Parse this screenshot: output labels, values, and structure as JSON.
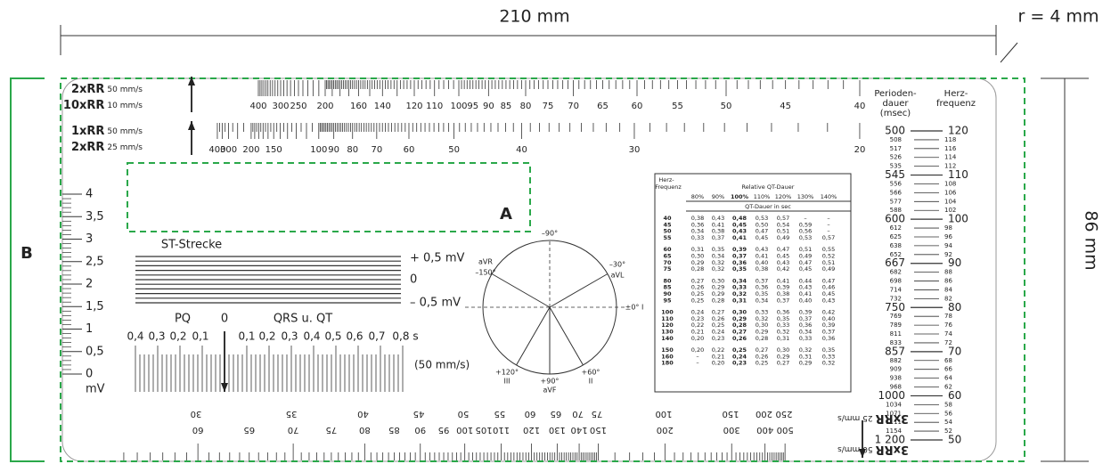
{
  "dimensions": {
    "width": "210 mm",
    "height": "86 mm",
    "radius": "r = 4 mm"
  },
  "callouts": {
    "a": "A",
    "b": "B"
  },
  "rr_scale_top": {
    "label_1": "2xRR",
    "unit_1": "50 mm/s",
    "label_2": "10xRR",
    "unit_2": "10 mm/s",
    "ticks": [
      "400",
      "300",
      "250",
      "200",
      "160",
      "140",
      "120",
      "110",
      "100",
      "95",
      "90",
      "85",
      "80",
      "75",
      "70",
      "65",
      "60",
      "55",
      "50",
      "45",
      "40"
    ]
  },
  "rr_scale_middle": {
    "label_1": "1xRR",
    "unit_1": "50 mm/s",
    "label_2": "2xRR",
    "unit_2": "25 mm/s",
    "ticks": [
      "400",
      "300",
      "200",
      "150",
      "100",
      "90",
      "80",
      "70",
      "60",
      "50",
      "40",
      "30",
      "20"
    ]
  },
  "mv_scale": {
    "ticks": [
      "4",
      "3,5",
      "3",
      "2,5",
      "2",
      "1,5",
      "1",
      "0,5",
      "0"
    ],
    "unit": "mV"
  },
  "st_segment": {
    "title": "ST-Strecke",
    "labels": [
      "+ 0,5 mV",
      "0",
      "– 0,5 mV"
    ]
  },
  "pq_qrs_scale": {
    "pq": "PQ",
    "zero": "0",
    "qrs_qt": "QRS u. QT",
    "ticks": [
      "0,4",
      "0,3",
      "0,2",
      "0,1",
      "0,1",
      "0,2",
      "0,3",
      "0,4",
      "0,5",
      "0,6",
      "0,7",
      "0,8 s"
    ],
    "speed": "(50 mm/s)"
  },
  "axis_circle": {
    "labels": [
      "–90°",
      "aVR",
      "–150°",
      "–30°",
      "aVL",
      "±0° I",
      "+120°",
      "III",
      "+90°",
      "aVF",
      "+60°",
      "II"
    ]
  },
  "qt_table": {
    "heart_rate_header": [
      "Herz-",
      "Frequenz"
    ],
    "relative_header": "Relative QT-Dauer",
    "columns": [
      "80%",
      "90%",
      "100%",
      "110%",
      "120%",
      "130%",
      "140%"
    ],
    "subheader": "QT-Dauer in sec",
    "rows": [
      [
        "40",
        "0,38",
        "0,43",
        "0,48",
        "0,53",
        "0,57",
        "–",
        "–"
      ],
      [
        "45",
        "0,36",
        "0,41",
        "0,45",
        "0,50",
        "0,54",
        "0,59",
        "–"
      ],
      [
        "50",
        "0,34",
        "0,38",
        "0,43",
        "0,47",
        "0,51",
        "0,56",
        "–"
      ],
      [
        "55",
        "0,33",
        "0,37",
        "0,41",
        "0,45",
        "0,49",
        "0,53",
        "0,57"
      ],
      [
        "60",
        "0,31",
        "0,35",
        "0,39",
        "0,43",
        "0,47",
        "0,51",
        "0,55"
      ],
      [
        "65",
        "0,30",
        "0,34",
        "0,37",
        "0,41",
        "0,45",
        "0,49",
        "0,52"
      ],
      [
        "70",
        "0,29",
        "0,32",
        "0,36",
        "0,40",
        "0,43",
        "0,47",
        "0,51"
      ],
      [
        "75",
        "0,28",
        "0,32",
        "0,35",
        "0,38",
        "0,42",
        "0,45",
        "0,49"
      ],
      [
        "80",
        "0,27",
        "0,30",
        "0,34",
        "0,37",
        "0,41",
        "0,44",
        "0,47"
      ],
      [
        "85",
        "0,26",
        "0,29",
        "0,33",
        "0,36",
        "0,39",
        "0,43",
        "0,46"
      ],
      [
        "90",
        "0,25",
        "0,29",
        "0,32",
        "0,35",
        "0,38",
        "0,41",
        "0,45"
      ],
      [
        "95",
        "0,25",
        "0,28",
        "0,31",
        "0,34",
        "0,37",
        "0,40",
        "0,43"
      ],
      [
        "100",
        "0,24",
        "0,27",
        "0,30",
        "0,33",
        "0,36",
        "0,39",
        "0,42"
      ],
      [
        "110",
        "0,23",
        "0,26",
        "0,29",
        "0,32",
        "0,35",
        "0,37",
        "0,40"
      ],
      [
        "120",
        "0,22",
        "0,25",
        "0,28",
        "0,30",
        "0,33",
        "0,36",
        "0,39"
      ],
      [
        "130",
        "0,21",
        "0,24",
        "0,27",
        "0,29",
        "0,32",
        "0,34",
        "0,37"
      ],
      [
        "140",
        "0,20",
        "0,23",
        "0,26",
        "0,28",
        "0,31",
        "0,33",
        "0,36"
      ],
      [
        "150",
        "0,20",
        "0,22",
        "0,25",
        "0,27",
        "0,30",
        "0,32",
        "0,35"
      ],
      [
        "160",
        "–",
        "0,21",
        "0,24",
        "0,26",
        "0,29",
        "0,31",
        "0,33"
      ],
      [
        "180",
        "–",
        "0,20",
        "0,23",
        "0,25",
        "0,27",
        "0,29",
        "0,32"
      ]
    ]
  },
  "period_scale": {
    "period_header": [
      "Perioden-",
      "dauer",
      "(msec)"
    ],
    "rate_header": [
      "Herz-",
      "frequenz"
    ],
    "rows": [
      [
        "500",
        "120"
      ],
      [
        "508",
        "118"
      ],
      [
        "517",
        "116"
      ],
      [
        "526",
        "114"
      ],
      [
        "535",
        "112"
      ],
      [
        "545",
        "110"
      ],
      [
        "556",
        "108"
      ],
      [
        "566",
        "106"
      ],
      [
        "577",
        "104"
      ],
      [
        "588",
        "102"
      ],
      [
        "600",
        "100"
      ],
      [
        "612",
        "98"
      ],
      [
        "625",
        "96"
      ],
      [
        "638",
        "94"
      ],
      [
        "652",
        "92"
      ],
      [
        "667",
        "90"
      ],
      [
        "682",
        "88"
      ],
      [
        "698",
        "86"
      ],
      [
        "714",
        "84"
      ],
      [
        "732",
        "82"
      ],
      [
        "750",
        "80"
      ],
      [
        "769",
        "78"
      ],
      [
        "789",
        "76"
      ],
      [
        "811",
        "74"
      ],
      [
        "833",
        "72"
      ],
      [
        "857",
        "70"
      ],
      [
        "882",
        "68"
      ],
      [
        "909",
        "66"
      ],
      [
        "938",
        "64"
      ],
      [
        "968",
        "62"
      ],
      [
        "1000",
        "60"
      ],
      [
        "1034",
        "58"
      ],
      [
        "1071",
        "56"
      ],
      [
        "1111",
        "54"
      ],
      [
        "1154",
        "52"
      ],
      [
        "1 200",
        "50"
      ]
    ]
  },
  "rr_scale_bottom": {
    "label_1": "3xRR",
    "unit_1": "25 mm/s",
    "label_2": "3xRR",
    "unit_2": "50 mm/s",
    "ticks_upper": [
      "30",
      "35",
      "40",
      "45",
      "50",
      "55",
      "60",
      "65",
      "70",
      "75",
      "100",
      "150",
      "200",
      "250"
    ],
    "ticks_lower": [
      "60",
      "65",
      "70",
      "75",
      "80",
      "85",
      "90",
      "95",
      "100",
      "105",
      "110",
      "120",
      "130",
      "140",
      "150",
      "200",
      "300",
      "400",
      "500"
    ]
  }
}
